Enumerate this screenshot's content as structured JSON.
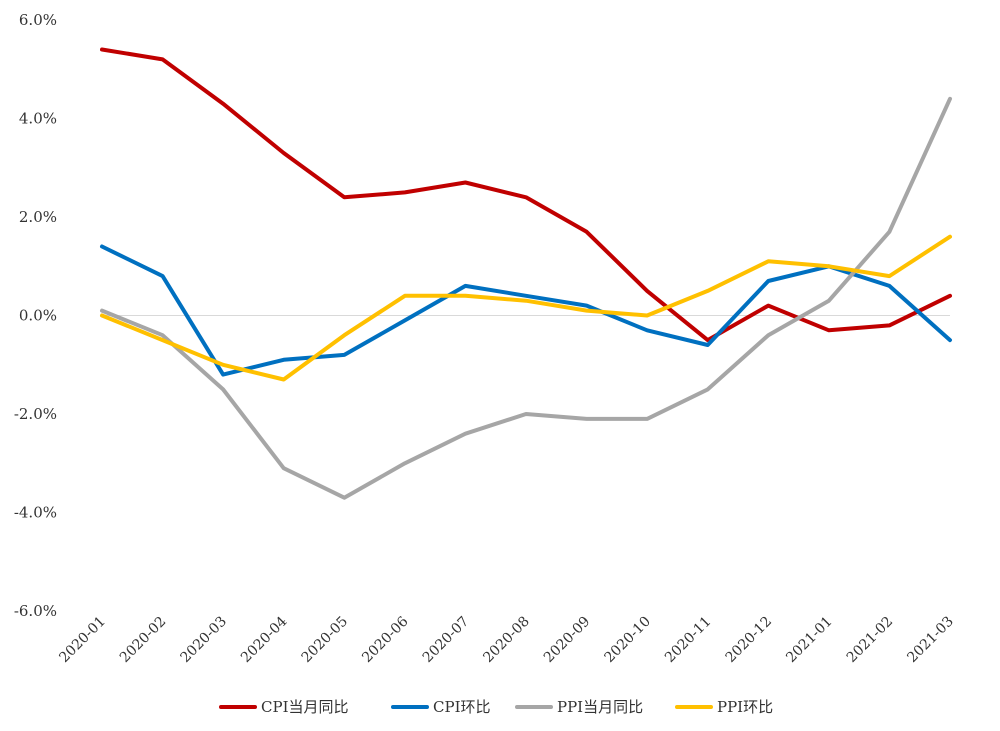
{
  "chart_data": {
    "type": "line",
    "x": [
      "2020-01",
      "2020-02",
      "2020-03",
      "2020-04",
      "2020-05",
      "2020-06",
      "2020-07",
      "2020-08",
      "2020-09",
      "2020-10",
      "2020-11",
      "2020-12",
      "2021-01",
      "2021-02",
      "2021-03"
    ],
    "ylim": [
      -6.0,
      6.0
    ],
    "yticks": [
      6.0,
      4.0,
      2.0,
      0.0,
      -2.0,
      -4.0,
      -6.0
    ],
    "ytick_labels": [
      "6.0%",
      "4.0%",
      "2.0%",
      "0.0%",
      "-2.0%",
      "-4.0%",
      "-6.0%"
    ],
    "grid": false,
    "legend_position": "bottom",
    "series": [
      {
        "name": "CPI当月同比",
        "color": "#C00000",
        "values": [
          5.4,
          5.2,
          4.3,
          3.3,
          2.4,
          2.5,
          2.7,
          2.4,
          1.7,
          0.5,
          -0.5,
          0.2,
          -0.3,
          -0.2,
          0.4
        ]
      },
      {
        "name": "CPI环比",
        "color": "#0070C0",
        "values": [
          1.4,
          0.8,
          -1.2,
          -0.9,
          -0.8,
          -0.1,
          0.6,
          0.4,
          0.2,
          -0.3,
          -0.6,
          0.7,
          1.0,
          0.6,
          -0.5
        ]
      },
      {
        "name": "PPI当月同比",
        "color": "#A6A6A6",
        "values": [
          0.1,
          -0.4,
          -1.5,
          -3.1,
          -3.7,
          -3.0,
          -2.4,
          -2.0,
          -2.1,
          -2.1,
          -1.5,
          -0.4,
          0.3,
          1.7,
          4.4
        ]
      },
      {
        "name": "PPI环比",
        "color": "#FFC000",
        "values": [
          0.0,
          -0.5,
          -1.0,
          -1.3,
          -0.4,
          0.4,
          0.4,
          0.3,
          0.1,
          0.0,
          0.5,
          1.1,
          1.0,
          0.8,
          1.6
        ]
      }
    ]
  }
}
